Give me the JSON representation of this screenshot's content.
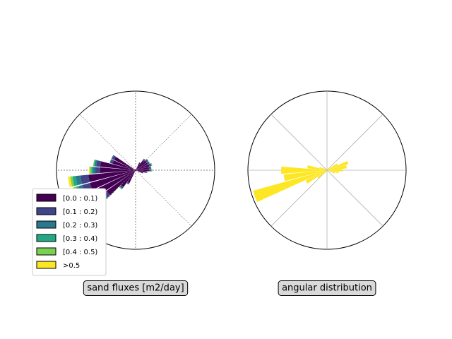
{
  "chart_data": [
    {
      "type": "windrose",
      "label": "sand fluxes [m2/day]",
      "x": [
        0,
        10,
        20,
        30,
        40,
        50,
        60,
        150,
        160,
        170,
        180,
        190,
        200,
        210,
        220,
        230,
        240,
        340,
        350
      ],
      "rlim": [
        0,
        1
      ],
      "grid": "dashed",
      "legend": "lower left",
      "series": [
        {
          "name": "[0.0 : 0.1)",
          "color": "#440154",
          "values": [
            0.17,
            0.17,
            0.18,
            0.17,
            0.17,
            0.15,
            0.1,
            0.3,
            0.3,
            0.45,
            0.45,
            0.6,
            0.6,
            0.55,
            0.45,
            0.26,
            0.18,
            0.09,
            0.13
          ]
        },
        {
          "name": "[0.1 : 0.2)",
          "color": "#414487",
          "values": [
            0.02,
            0.02,
            0.02,
            0.02,
            0.02,
            0.02,
            0.01,
            0.03,
            0.03,
            0.05,
            0.06,
            0.1,
            0.1,
            0.12,
            0.05,
            0.02,
            0.01,
            0.01,
            0.01
          ]
        },
        {
          "name": "[0.2 : 0.3)",
          "color": "#2a788e",
          "values": [
            0.01,
            0.01,
            0.01,
            0.01,
            0.01,
            0.01,
            0,
            0.01,
            0.01,
            0.02,
            0.03,
            0.06,
            0.05,
            0.08,
            0.03,
            0.01,
            0.01,
            0,
            0.01
          ]
        },
        {
          "name": "[0.3 : 0.4)",
          "color": "#22a884",
          "values": [
            0,
            0,
            0,
            0,
            0,
            0,
            0,
            0,
            0,
            0.01,
            0.02,
            0.04,
            0.03,
            0.05,
            0.01,
            0,
            0,
            0,
            0
          ]
        },
        {
          "name": "[0.4 : 0.5)",
          "color": "#7ad151",
          "values": [
            0.01,
            0,
            0.01,
            0,
            0,
            0,
            0,
            0,
            0,
            0.01,
            0.02,
            0.03,
            0.03,
            0.04,
            0.01,
            0.01,
            0,
            0,
            0
          ]
        },
        {
          "name": ">0.5",
          "color": "#fde725",
          "values": [
            0,
            0,
            0,
            0,
            0,
            0,
            0,
            0,
            0,
            0,
            0.01,
            0.03,
            0.02,
            0.03,
            0,
            0,
            0,
            0,
            0
          ]
        }
      ]
    },
    {
      "type": "windrose",
      "label": "angular distribution",
      "x": [
        0,
        10,
        20,
        30,
        40,
        50,
        60,
        150,
        160,
        170,
        180,
        190,
        200,
        210,
        220,
        230,
        240,
        340,
        350
      ],
      "rlim": [
        0,
        1
      ],
      "grid": "solid",
      "series": [
        {
          "color": "#fde725",
          "values": [
            0.2,
            0.25,
            0.28,
            0.15,
            0.05,
            0.03,
            0,
            0.05,
            0.1,
            0.25,
            0.58,
            0.55,
            0.97,
            0.3,
            0.15,
            0.05,
            0,
            0.1,
            0.15
          ]
        }
      ]
    }
  ]
}
